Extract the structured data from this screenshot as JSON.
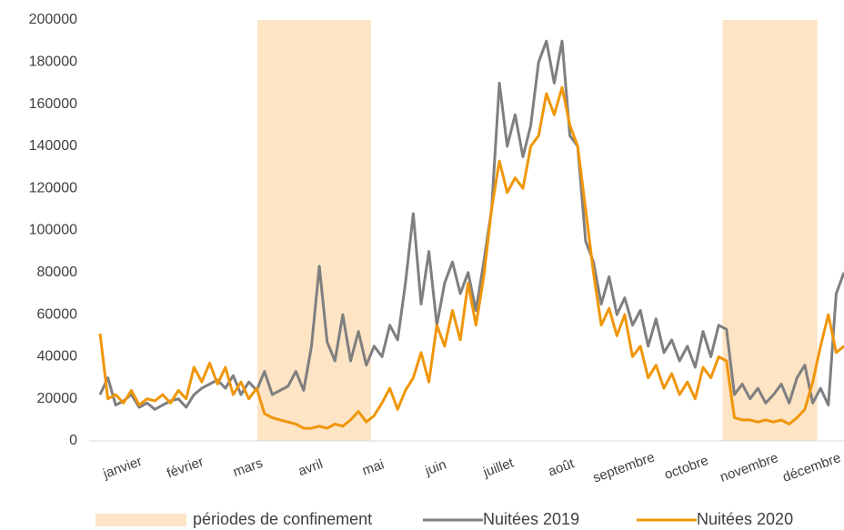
{
  "chart_data": {
    "type": "line",
    "categories": [
      "janvier",
      null,
      null,
      null,
      null,
      null,
      null,
      null,
      "février",
      null,
      null,
      null,
      null,
      null,
      null,
      null,
      "mars",
      null,
      null,
      null,
      null,
      null,
      null,
      null,
      "avril",
      null,
      null,
      null,
      null,
      null,
      null,
      null,
      "mai",
      null,
      null,
      null,
      null,
      null,
      null,
      null,
      "juin",
      null,
      null,
      null,
      null,
      null,
      null,
      null,
      "juillet",
      null,
      null,
      null,
      null,
      null,
      null,
      null,
      "août",
      null,
      null,
      null,
      null,
      null,
      null,
      null,
      "septembre",
      null,
      null,
      null,
      null,
      null,
      null,
      null,
      "octobre",
      null,
      null,
      null,
      null,
      null,
      null,
      null,
      "novembre",
      null,
      null,
      null,
      null,
      null,
      null,
      null,
      "décembre",
      null,
      null,
      null,
      null,
      null,
      null,
      null
    ],
    "series": [
      {
        "name": "Nuitées 2019",
        "color": "#7f7f7f",
        "values": [
          22000,
          30000,
          17000,
          19000,
          22000,
          16000,
          18000,
          15000,
          17000,
          19000,
          20000,
          16000,
          22000,
          25000,
          27000,
          29000,
          25000,
          31000,
          22000,
          28000,
          24000,
          33000,
          22000,
          24000,
          26000,
          33000,
          24000,
          45000,
          83000,
          47000,
          38000,
          60000,
          38000,
          52000,
          36000,
          45000,
          40000,
          55000,
          48000,
          75000,
          108000,
          65000,
          90000,
          55000,
          75000,
          85000,
          70000,
          80000,
          62000,
          85000,
          110000,
          170000,
          140000,
          155000,
          135000,
          150000,
          180000,
          190000,
          170000,
          190000,
          145000,
          140000,
          95000,
          85000,
          65000,
          78000,
          60000,
          68000,
          55000,
          62000,
          45000,
          58000,
          42000,
          48000,
          38000,
          45000,
          35000,
          52000,
          40000,
          55000,
          53000,
          22000,
          27000,
          20000,
          25000,
          18000,
          22000,
          27000,
          18000,
          30000,
          36000,
          18000,
          25000,
          17000,
          70000,
          80000
        ]
      },
      {
        "name": "Nuitées 2020",
        "color": "#f0960a",
        "values": [
          51000,
          20000,
          22000,
          18000,
          24000,
          17000,
          20000,
          19000,
          22000,
          18000,
          24000,
          20000,
          35000,
          28000,
          37000,
          27000,
          35000,
          22000,
          28000,
          20000,
          25000,
          13000,
          11000,
          10000,
          9000,
          8000,
          6000,
          6000,
          7000,
          6000,
          8000,
          7000,
          10000,
          14000,
          9000,
          12000,
          18000,
          25000,
          15000,
          24000,
          30000,
          42000,
          28000,
          55000,
          45000,
          62000,
          48000,
          75000,
          55000,
          78000,
          110000,
          133000,
          118000,
          125000,
          120000,
          140000,
          145000,
          165000,
          155000,
          168000,
          150000,
          140000,
          110000,
          80000,
          55000,
          63000,
          50000,
          60000,
          40000,
          45000,
          30000,
          36000,
          25000,
          32000,
          22000,
          28000,
          20000,
          35000,
          30000,
          40000,
          38000,
          11000,
          10000,
          10000,
          9000,
          10000,
          9000,
          10000,
          8000,
          11000,
          15000,
          28000,
          45000,
          60000,
          42000,
          45000
        ]
      }
    ],
    "shaded": {
      "name": "périodes de confinement",
      "color": "#fce4c4",
      "ranges": [
        [
          20.1,
          34.6
        ],
        [
          79.5,
          91.6
        ]
      ]
    },
    "ylim": [
      0,
      200000
    ],
    "yticks": [
      0,
      20000,
      40000,
      60000,
      80000,
      100000,
      120000,
      140000,
      160000,
      180000,
      200000
    ],
    "grid": false
  }
}
